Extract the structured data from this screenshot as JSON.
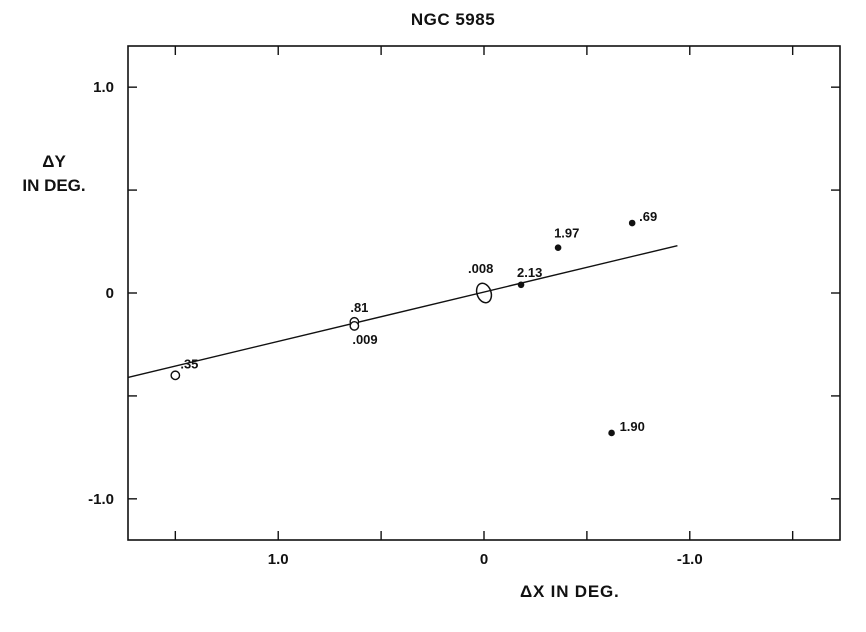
{
  "chart_data": {
    "type": "scatter",
    "title": "NGC 5985",
    "xlabel": "ΔX IN DEG.",
    "ylabel": [
      "ΔY",
      "IN DEG."
    ],
    "xlim": [
      1.73,
      -1.73
    ],
    "ylim": [
      -1.2,
      1.2
    ],
    "x_ticks": [
      1.5,
      1.0,
      0.5,
      0,
      -0.5,
      -1.0,
      -1.5
    ],
    "x_tick_labels": [
      "1.0",
      "0",
      "-1.0"
    ],
    "x_tick_label_values": [
      1.0,
      0,
      -1.0
    ],
    "y_ticks": [
      1.0,
      0.5,
      0,
      -0.5,
      -1.0
    ],
    "y_tick_labels": [
      "1.0",
      "0",
      "-1.0"
    ],
    "y_tick_label_values": [
      1.0,
      0,
      -1.0
    ],
    "grid": false,
    "fit_line": {
      "x": [
        1.73,
        -0.94
      ],
      "y": [
        -0.41,
        0.23
      ]
    },
    "points": [
      {
        "x": 1.5,
        "y": -0.4,
        "label": ".35",
        "marker": "open"
      },
      {
        "x": 0.63,
        "y": -0.14,
        "label": ".81",
        "marker": "open"
      },
      {
        "x": 0.63,
        "y": -0.16,
        "label": ".009",
        "marker": "open"
      },
      {
        "x": 0.0,
        "y": 0.0,
        "label": ".008",
        "marker": "open-ellipse"
      },
      {
        "x": -0.18,
        "y": 0.04,
        "label": "2.13",
        "marker": "filled"
      },
      {
        "x": -0.36,
        "y": 0.22,
        "label": "1.97",
        "marker": "filled"
      },
      {
        "x": -0.72,
        "y": 0.34,
        "label": ".69",
        "marker": "filled"
      },
      {
        "x": -0.62,
        "y": -0.68,
        "label": "1.90",
        "marker": "filled"
      }
    ]
  }
}
